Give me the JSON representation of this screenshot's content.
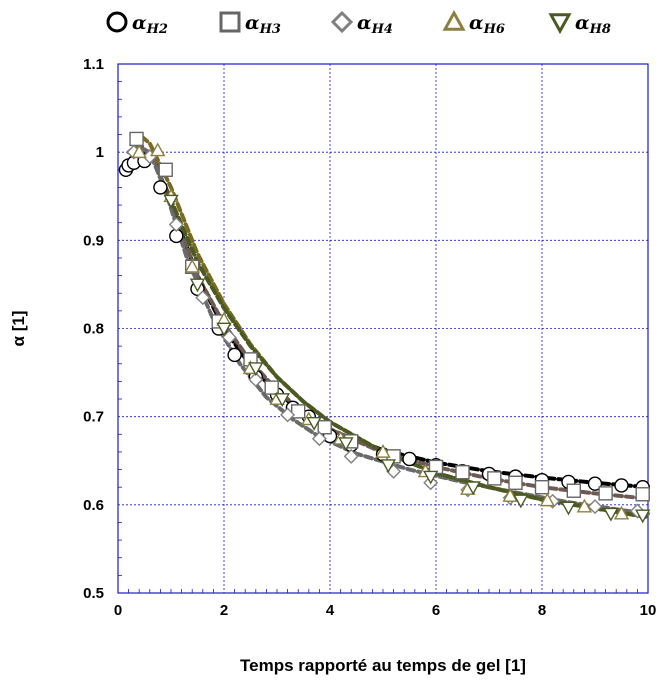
{
  "chart_data": {
    "type": "scatter",
    "xlabel": "Temps rapporté au temps de gel [1]",
    "ylabel": "α [1]",
    "xlim": [
      0,
      10
    ],
    "ylim": [
      0.5,
      1.1
    ],
    "xticks": [
      "0",
      "2",
      "4",
      "6",
      "8",
      "10"
    ],
    "yticks": [
      "0.5",
      "0.6",
      "0.7",
      "0.8",
      "0.9",
      "1",
      "1.1"
    ],
    "grid": true,
    "legend_position": "top",
    "series": [
      {
        "name": "α",
        "subscript": "H2",
        "marker": "circle",
        "marker_color": "#000000",
        "line_color": "#000000",
        "points": [
          [
            0.15,
            0.98
          ],
          [
            0.2,
            0.985
          ],
          [
            0.3,
            0.988
          ],
          [
            0.5,
            0.99
          ],
          [
            0.8,
            0.96
          ],
          [
            1.1,
            0.905
          ],
          [
            1.5,
            0.845
          ],
          [
            1.9,
            0.8
          ],
          [
            2.2,
            0.77
          ],
          [
            2.6,
            0.745
          ],
          [
            3.0,
            0.725
          ],
          [
            3.3,
            0.71
          ],
          [
            3.6,
            0.7
          ],
          [
            4.0,
            0.678
          ],
          [
            4.4,
            0.668
          ],
          [
            5.0,
            0.657
          ],
          [
            5.5,
            0.652
          ],
          [
            6.0,
            0.645
          ],
          [
            6.5,
            0.638
          ],
          [
            7.0,
            0.635
          ],
          [
            7.5,
            0.632
          ],
          [
            8.0,
            0.628
          ],
          [
            8.5,
            0.626
          ],
          [
            9.0,
            0.624
          ],
          [
            9.5,
            0.622
          ],
          [
            9.9,
            0.62
          ]
        ],
        "fit": [
          [
            0.15,
            0.978
          ],
          [
            0.3,
            0.99
          ],
          [
            0.5,
            1.0
          ],
          [
            0.7,
            0.99
          ],
          [
            1.0,
            0.94
          ],
          [
            1.5,
            0.86
          ],
          [
            2.0,
            0.8
          ],
          [
            2.5,
            0.758
          ],
          [
            3.0,
            0.727
          ],
          [
            3.5,
            0.705
          ],
          [
            4.0,
            0.685
          ],
          [
            5.0,
            0.662
          ],
          [
            6.0,
            0.648
          ],
          [
            7.0,
            0.638
          ],
          [
            8.0,
            0.631
          ],
          [
            9.0,
            0.625
          ],
          [
            10.0,
            0.62
          ]
        ]
      },
      {
        "name": "α",
        "subscript": "H3",
        "marker": "square",
        "marker_color": "#666666",
        "line_color": "#6e5a55",
        "points": [
          [
            0.35,
            1.015
          ],
          [
            0.9,
            0.98
          ],
          [
            1.4,
            0.87
          ],
          [
            1.9,
            0.808
          ],
          [
            2.5,
            0.765
          ],
          [
            2.9,
            0.733
          ],
          [
            3.4,
            0.706
          ],
          [
            3.9,
            0.688
          ],
          [
            4.4,
            0.672
          ],
          [
            5.2,
            0.655
          ],
          [
            6.0,
            0.643
          ],
          [
            6.5,
            0.637
          ],
          [
            7.1,
            0.63
          ],
          [
            7.5,
            0.625
          ],
          [
            8.0,
            0.62
          ],
          [
            8.6,
            0.616
          ],
          [
            9.2,
            0.613
          ],
          [
            9.9,
            0.612
          ]
        ],
        "fit": [
          [
            0.2,
            1.0
          ],
          [
            0.4,
            1.01
          ],
          [
            0.7,
            0.99
          ],
          [
            1.0,
            0.94
          ],
          [
            1.5,
            0.86
          ],
          [
            2.0,
            0.805
          ],
          [
            2.5,
            0.763
          ],
          [
            3.0,
            0.73
          ],
          [
            3.5,
            0.705
          ],
          [
            4.0,
            0.686
          ],
          [
            5.0,
            0.659
          ],
          [
            6.0,
            0.643
          ],
          [
            7.0,
            0.63
          ],
          [
            8.0,
            0.62
          ],
          [
            9.0,
            0.613
          ],
          [
            10.0,
            0.607
          ]
        ]
      },
      {
        "name": "α",
        "subscript": "H4",
        "marker": "diamond",
        "marker_color": "#808080",
        "line_color": "#6a6a6a",
        "points": [
          [
            0.3,
            1.0
          ],
          [
            0.6,
            0.995
          ],
          [
            1.1,
            0.918
          ],
          [
            1.6,
            0.835
          ],
          [
            2.1,
            0.79
          ],
          [
            2.6,
            0.742
          ],
          [
            3.2,
            0.702
          ],
          [
            3.8,
            0.675
          ],
          [
            4.4,
            0.655
          ],
          [
            5.2,
            0.638
          ],
          [
            5.9,
            0.625
          ],
          [
            6.6,
            0.617
          ],
          [
            7.4,
            0.608
          ],
          [
            8.2,
            0.604
          ],
          [
            9.0,
            0.598
          ],
          [
            9.8,
            0.593
          ]
        ],
        "fit": [
          [
            0.2,
            0.99
          ],
          [
            0.4,
            1.005
          ],
          [
            0.6,
            1.0
          ],
          [
            0.9,
            0.955
          ],
          [
            1.3,
            0.88
          ],
          [
            1.8,
            0.81
          ],
          [
            2.3,
            0.76
          ],
          [
            2.8,
            0.722
          ],
          [
            3.3,
            0.697
          ],
          [
            3.8,
            0.677
          ],
          [
            4.5,
            0.658
          ],
          [
            5.5,
            0.64
          ],
          [
            6.5,
            0.626
          ],
          [
            7.5,
            0.614
          ],
          [
            8.5,
            0.603
          ],
          [
            9.5,
            0.594
          ],
          [
            10.0,
            0.59
          ]
        ]
      },
      {
        "name": "α",
        "subscript": "H6",
        "marker": "triangle-up",
        "marker_color": "#8c8040",
        "line_color": "#7a6a20",
        "points": [
          [
            0.4,
            1.0
          ],
          [
            0.75,
            1.002
          ],
          [
            1.0,
            0.95
          ],
          [
            1.4,
            0.87
          ],
          [
            2.0,
            0.81
          ],
          [
            2.5,
            0.755
          ],
          [
            3.0,
            0.72
          ],
          [
            3.6,
            0.697
          ],
          [
            4.2,
            0.675
          ],
          [
            5.0,
            0.66
          ],
          [
            5.8,
            0.638
          ],
          [
            6.6,
            0.618
          ],
          [
            7.4,
            0.61
          ],
          [
            8.1,
            0.605
          ],
          [
            8.8,
            0.598
          ],
          [
            9.5,
            0.59
          ]
        ],
        "fit": [
          [
            0.3,
            1.0
          ],
          [
            0.4,
            1.02
          ],
          [
            0.6,
            1.01
          ],
          [
            1.0,
            0.96
          ],
          [
            1.5,
            0.885
          ],
          [
            2.0,
            0.828
          ],
          [
            2.5,
            0.782
          ],
          [
            3.0,
            0.745
          ],
          [
            3.5,
            0.717
          ],
          [
            4.0,
            0.694
          ],
          [
            5.0,
            0.66
          ],
          [
            6.0,
            0.636
          ],
          [
            7.0,
            0.62
          ],
          [
            8.0,
            0.606
          ],
          [
            9.0,
            0.596
          ],
          [
            10.0,
            0.586
          ]
        ]
      },
      {
        "name": "α",
        "subscript": "H8",
        "marker": "triangle-down",
        "marker_color": "#4a5a22",
        "line_color": "#4a5a22",
        "points": [
          [
            1.0,
            0.945
          ],
          [
            1.5,
            0.85
          ],
          [
            2.0,
            0.8
          ],
          [
            2.6,
            0.755
          ],
          [
            3.1,
            0.72
          ],
          [
            3.7,
            0.693
          ],
          [
            4.3,
            0.67
          ],
          [
            5.1,
            0.645
          ],
          [
            5.9,
            0.632
          ],
          [
            6.7,
            0.62
          ],
          [
            7.6,
            0.605
          ],
          [
            8.5,
            0.597
          ],
          [
            9.3,
            0.59
          ],
          [
            9.9,
            0.588
          ]
        ],
        "fit": [
          [
            0.9,
            0.96
          ],
          [
            1.5,
            0.875
          ],
          [
            2.0,
            0.823
          ],
          [
            2.5,
            0.78
          ],
          [
            3.0,
            0.745
          ],
          [
            3.5,
            0.717
          ],
          [
            4.0,
            0.694
          ],
          [
            5.0,
            0.66
          ],
          [
            6.0,
            0.636
          ],
          [
            7.0,
            0.62
          ],
          [
            8.0,
            0.606
          ],
          [
            9.0,
            0.596
          ],
          [
            10.0,
            0.586
          ]
        ]
      }
    ]
  }
}
